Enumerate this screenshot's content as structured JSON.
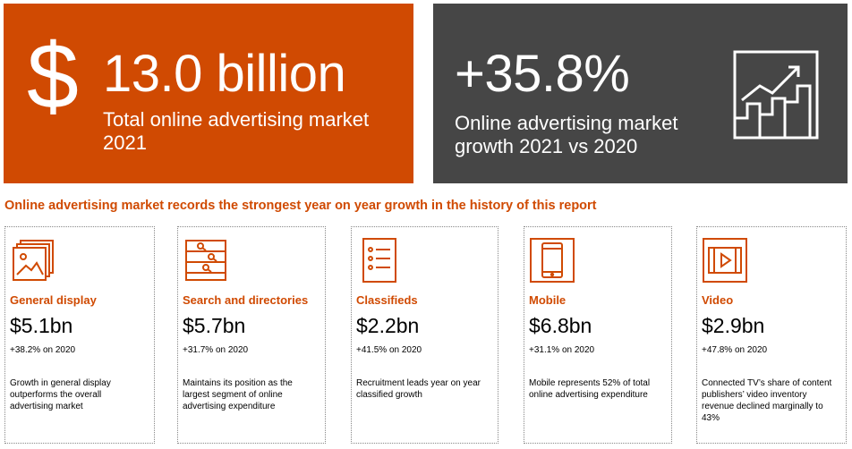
{
  "hero_left": {
    "symbol": "$",
    "value": "13.0 billion",
    "description": "Total online advertising market 2021"
  },
  "hero_right": {
    "value": "+35.8%",
    "description": "Online advertising market growth 2021 vs 2020",
    "icon": "growth-chart-icon"
  },
  "headline": "Online advertising market records the strongest year on year growth in the history of this report",
  "colors": {
    "accent": "#d04a02",
    "dark": "#464646"
  },
  "cards": [
    {
      "icon": "image-gallery-icon",
      "title": "General display",
      "value": "$5.1bn",
      "change": "+38.2% on 2020",
      "description": "Growth in general display outperforms the overall advertising market"
    },
    {
      "icon": "search-list-icon",
      "title": "Search and directories",
      "value": "$5.7bn",
      "change": "+31.7% on 2020",
      "description": "Maintains its position as the largest segment of online advertising expenditure"
    },
    {
      "icon": "checklist-icon",
      "title": "Classifieds",
      "value": "$2.2bn",
      "change": "+41.5% on 2020",
      "description": "Recruitment leads year on year classified growth"
    },
    {
      "icon": "mobile-phone-icon",
      "title": "Mobile",
      "value": "$6.8bn",
      "change": "+31.1% on 2020",
      "description": "Mobile represents 52% of total online advertising expenditure"
    },
    {
      "icon": "video-play-icon",
      "title": "Video",
      "value": "$2.9bn",
      "change": "+47.8% on 2020",
      "description": "Connected TV’s share of content publishers’ video inventory revenue declined marginally to 43%"
    }
  ]
}
